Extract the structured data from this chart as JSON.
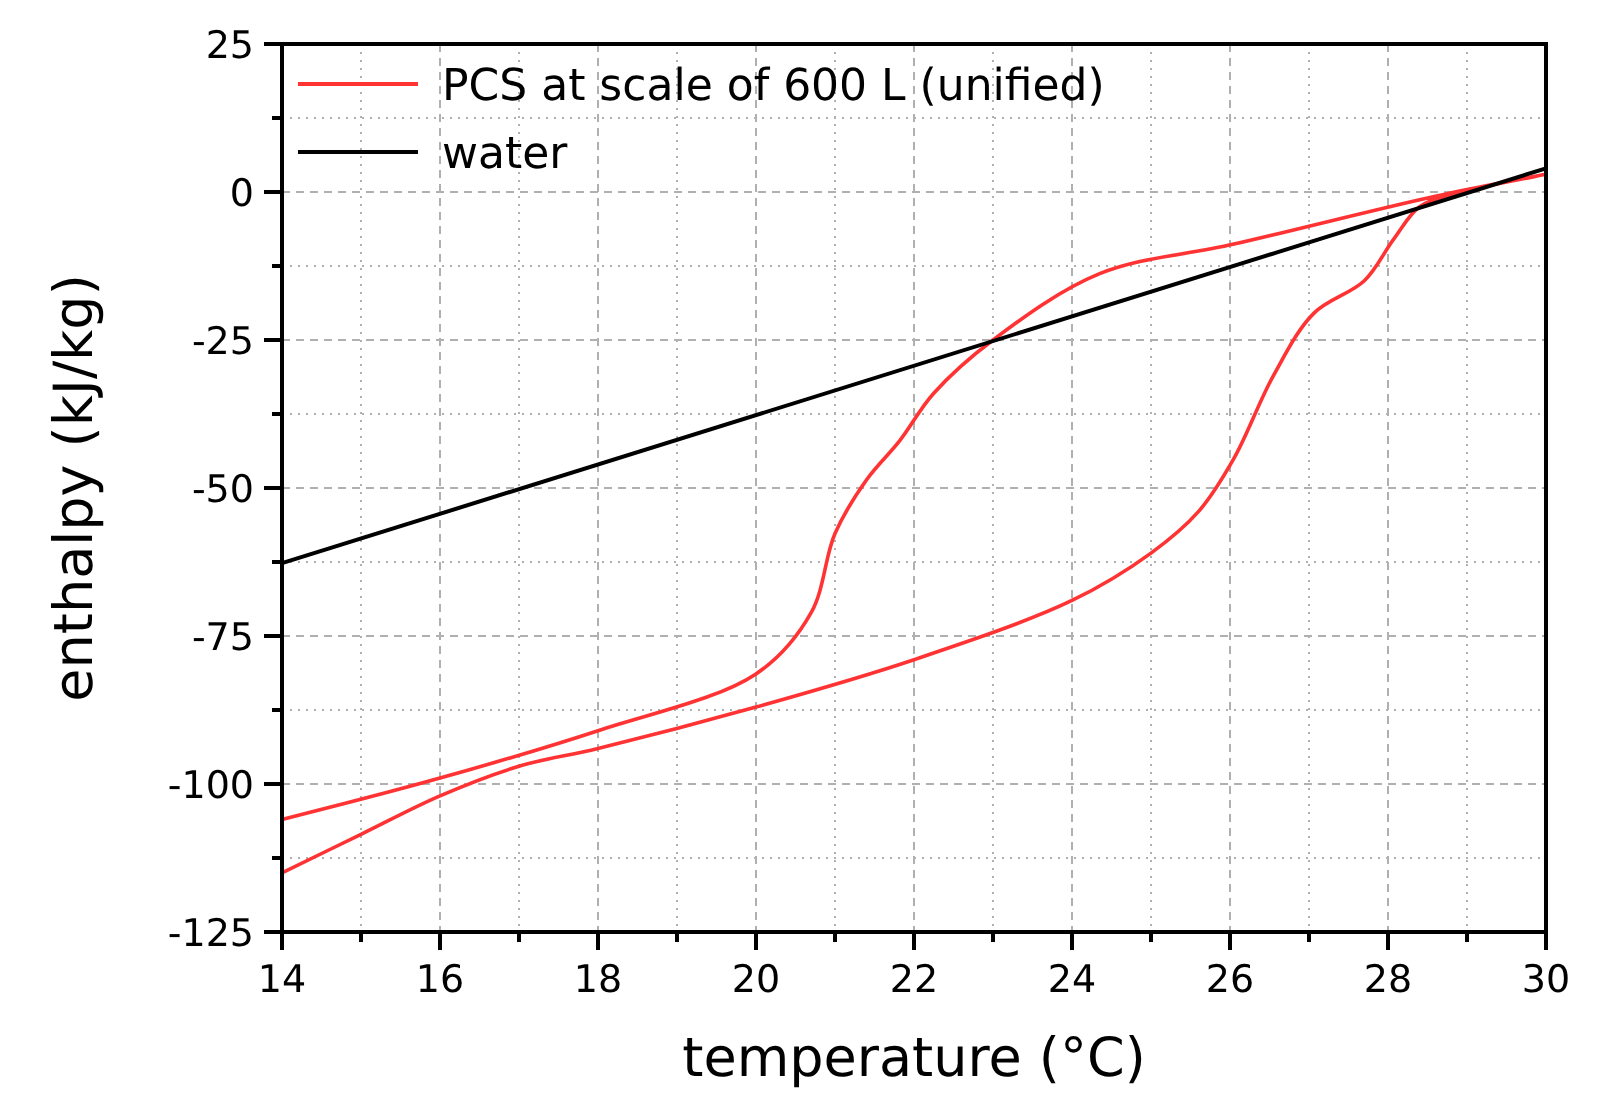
{
  "chart_data": {
    "type": "line",
    "xlabel": "temperature (°C)",
    "ylabel": "enthalpy (kJ/kg)",
    "xlim": [
      14,
      30
    ],
    "ylim": [
      -125,
      25
    ],
    "xticks": [
      14,
      {
        "value": 15,
        "label": null
      },
      16,
      {
        "value": 17,
        "label": null
      },
      18,
      {
        "value": 19,
        "label": null
      },
      20,
      {
        "value": 21,
        "label": null
      },
      22,
      {
        "value": 23,
        "label": null
      },
      24,
      {
        "value": 25,
        "label": null
      },
      26,
      {
        "value": 27,
        "label": null
      },
      28,
      {
        "value": 29,
        "label": null
      },
      30
    ],
    "yticks": [
      -125,
      {
        "value": -112.5,
        "label": null
      },
      -100,
      {
        "value": -87.5,
        "label": null
      },
      -75,
      {
        "value": -62.5,
        "label": null
      },
      -50,
      {
        "value": -37.5,
        "label": null
      },
      -25,
      {
        "value": -12.5,
        "label": null
      },
      0,
      {
        "value": 12.5,
        "label": null
      },
      25
    ],
    "grid": true,
    "legend": "top left",
    "line_style": "solid",
    "marker": "none",
    "series": [
      {
        "name": "PCS at scale of 600 L (unified)",
        "color": "#ff3333",
        "x": [
          14,
          15,
          16,
          17,
          18,
          20,
          22,
          24,
          25,
          25.6,
          26.05,
          26.55,
          27.06,
          27.7,
          28.07,
          28.4,
          28.84,
          30,
          28.6,
          26.05,
          24.35,
          23,
          22.25,
          21.82,
          21.4,
          21,
          20.7,
          20,
          18,
          16,
          14
        ],
        "values": [
          -115,
          -108.5,
          -102,
          -97,
          -94,
          -87,
          -79,
          -69,
          -61,
          -54,
          -45,
          -31,
          -20.5,
          -15,
          -8,
          -2.5,
          -0.3,
          3,
          -0.7,
          -8.8,
          -13.8,
          -25,
          -34,
          -42,
          -48.6,
          -57.7,
          -71,
          -81.4,
          -91,
          -99,
          -106
        ]
      },
      {
        "name": "water",
        "color": "#000000",
        "x": [
          14,
          30
        ],
        "values": [
          -62.7,
          4
        ]
      }
    ]
  }
}
